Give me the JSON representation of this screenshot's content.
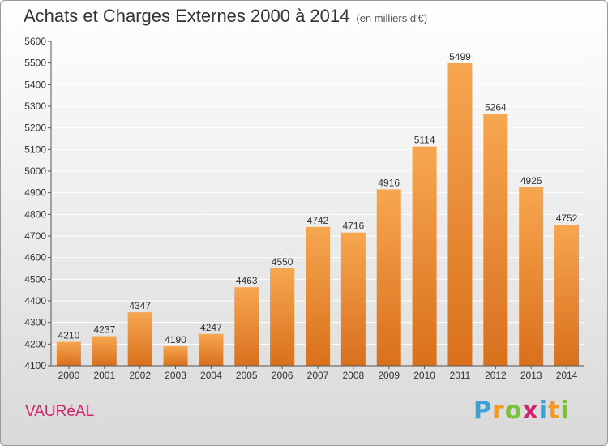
{
  "header": {
    "title": "Achats et Charges Externes 2000 à 2014",
    "unit": "(en milliers d'€)"
  },
  "footer": {
    "place": "VAURéAL",
    "brand_letters": [
      "P",
      "r",
      "o",
      "x",
      "i",
      "t",
      "i"
    ],
    "brand_colors": [
      "#3aa0d8",
      "#f29a1f",
      "#7cbf3c",
      "#d2246a",
      "#3aa0d8",
      "#f29a1f",
      "#7cbf3c"
    ]
  },
  "colors": {
    "bar_top": "#f7a650",
    "bar_bottom": "#d9701c",
    "grid": "#ffffff",
    "axis": "#555555"
  },
  "chart_data": {
    "type": "bar",
    "title": "Achats et Charges Externes 2000 à 2014",
    "subtitle": "(en milliers d'€)",
    "categories": [
      "2000",
      "2001",
      "2002",
      "2003",
      "2004",
      "2005",
      "2006",
      "2007",
      "2008",
      "2009",
      "2010",
      "2011",
      "2012",
      "2013",
      "2014"
    ],
    "values": [
      4210,
      4237,
      4347,
      4190,
      4247,
      4463,
      4550,
      4742,
      4716,
      4916,
      5114,
      5499,
      5264,
      4925,
      4752
    ],
    "ylim": [
      4100,
      5600
    ],
    "yticks": [
      4100,
      4200,
      4300,
      4400,
      4500,
      4600,
      4700,
      4800,
      4900,
      5000,
      5100,
      5200,
      5300,
      5400,
      5500,
      5600
    ],
    "grid": true,
    "data_labels": true
  }
}
